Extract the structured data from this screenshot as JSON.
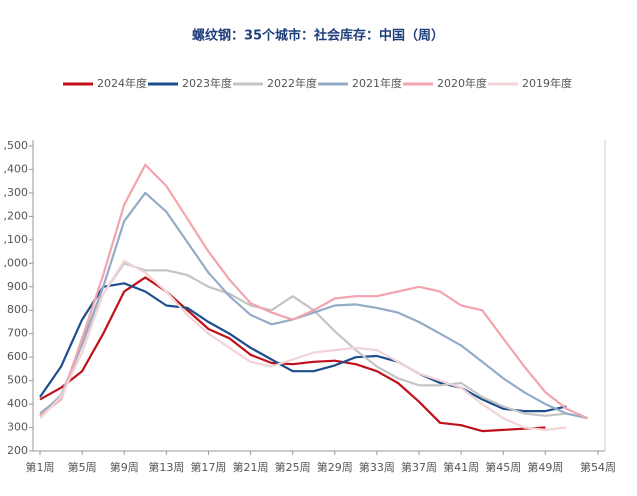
{
  "chart_data": {
    "type": "line",
    "title": "螺纹钢：35个城市：社会库存：中国（周）",
    "x": [
      1,
      3,
      5,
      7,
      9,
      11,
      13,
      15,
      17,
      19,
      21,
      23,
      25,
      27,
      29,
      31,
      33,
      35,
      37,
      39,
      41,
      43,
      45,
      47,
      49,
      51,
      53
    ],
    "series": [
      {
        "name": "2024年度",
        "color": "#c0101c",
        "values": [
          420,
          470,
          540,
          700,
          880,
          940,
          880,
          800,
          720,
          680,
          610,
          575,
          570,
          580,
          585,
          570,
          540,
          490,
          410,
          320,
          310,
          285,
          290,
          295,
          300,
          null,
          null
        ]
      },
      {
        "name": "2023年度",
        "color": "#1f4e8c",
        "values": [
          430,
          560,
          760,
          900,
          915,
          880,
          820,
          810,
          750,
          700,
          640,
          590,
          540,
          540,
          565,
          600,
          605,
          580,
          530,
          490,
          470,
          420,
          380,
          370,
          370,
          390,
          null
        ]
      },
      {
        "name": "2022年度",
        "color": "#c4c4c4",
        "values": [
          350,
          440,
          650,
          870,
          1000,
          970,
          970,
          950,
          900,
          870,
          820,
          800,
          860,
          800,
          710,
          630,
          560,
          510,
          480,
          480,
          490,
          430,
          390,
          360,
          350,
          360,
          null
        ]
      },
      {
        "name": "2021年度",
        "color": "#94abc8",
        "values": [
          360,
          430,
          660,
          900,
          1180,
          1300,
          1220,
          1090,
          960,
          860,
          780,
          740,
          760,
          790,
          820,
          825,
          810,
          790,
          750,
          700,
          650,
          580,
          510,
          450,
          400,
          360,
          340
        ]
      },
      {
        "name": "2020年度",
        "color": "#f2a5ae",
        "values": [
          350,
          420,
          680,
          950,
          1250,
          1420,
          1330,
          1190,
          1050,
          930,
          830,
          790,
          760,
          800,
          850,
          860,
          860,
          880,
          900,
          880,
          820,
          800,
          680,
          560,
          450,
          380,
          340
        ]
      },
      {
        "name": "2019年度",
        "color": "#f2d4d7",
        "values": [
          340,
          430,
          620,
          870,
          1010,
          960,
          880,
          780,
          700,
          640,
          580,
          560,
          590,
          620,
          630,
          640,
          630,
          580,
          530,
          500,
          470,
          400,
          340,
          300,
          290,
          300,
          null
        ]
      }
    ],
    "xlim": [
      1,
      54
    ],
    "xticks": [
      {
        "value": 1,
        "label": "第1周"
      },
      {
        "value": 5,
        "label": "第5周"
      },
      {
        "value": 9,
        "label": "第9周"
      },
      {
        "value": 13,
        "label": "第13周"
      },
      {
        "value": 17,
        "label": "第17周"
      },
      {
        "value": 21,
        "label": "第21周"
      },
      {
        "value": 25,
        "label": "第25周"
      },
      {
        "value": 29,
        "label": "第29周"
      },
      {
        "value": 33,
        "label": "第33周"
      },
      {
        "value": 37,
        "label": "第37周"
      },
      {
        "value": 41,
        "label": "第41周"
      },
      {
        "value": 45,
        "label": "第45周"
      },
      {
        "value": 49,
        "label": "第49周"
      },
      {
        "value": 54,
        "label": "第54周"
      }
    ],
    "ylim": [
      200,
      1500
    ],
    "yticks": [
      200,
      300,
      400,
      500,
      600,
      700,
      800,
      900,
      {
        "value": 1000,
        "label": ",000"
      },
      {
        "value": 1100,
        "label": ",100"
      },
      {
        "value": 1200,
        "label": ",200"
      },
      {
        "value": 1300,
        "label": ",300"
      },
      {
        "value": 1400,
        "label": ",400"
      },
      {
        "value": 1500,
        "label": ",500"
      }
    ]
  }
}
